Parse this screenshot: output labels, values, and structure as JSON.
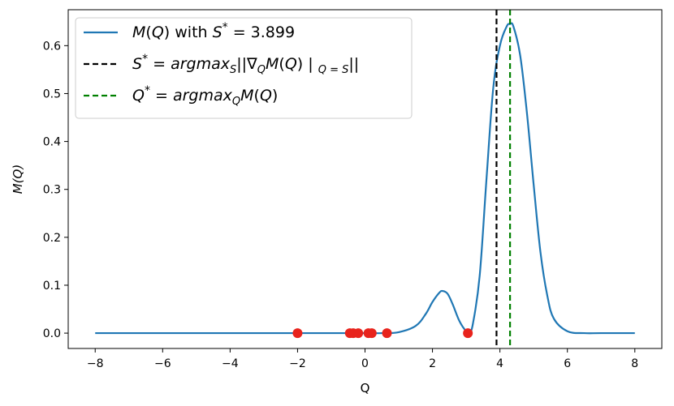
{
  "chart_data": {
    "type": "line",
    "xlabel": "Q",
    "ylabel": "M(Q)",
    "xlim": [
      -8.8,
      8.8
    ],
    "ylim": [
      -0.032,
      0.675
    ],
    "xticks": [
      -8,
      -6,
      -4,
      -2,
      0,
      2,
      4,
      6,
      8
    ],
    "xtick_labels": [
      "−8",
      "−6",
      "−4",
      "−2",
      "0",
      "2",
      "4",
      "6",
      "8"
    ],
    "yticks": [
      0.0,
      0.1,
      0.2,
      0.3,
      0.4,
      0.5,
      0.6
    ],
    "ytick_labels": [
      "0.0",
      "0.1",
      "0.2",
      "0.3",
      "0.4",
      "0.5",
      "0.6"
    ],
    "grid": false,
    "legend_position": "top-left",
    "series": [
      {
        "name": "M(Q) with S* = 3.899",
        "style": "solid",
        "color": "#1f77b4",
        "x": [
          -8,
          -6,
          -4,
          -2,
          -1,
          0,
          0.5,
          1.0,
          1.5,
          1.8,
          2.0,
          2.2,
          2.3,
          2.45,
          2.6,
          2.8,
          3.0,
          3.1,
          3.2,
          3.4,
          3.6,
          3.8,
          4.0,
          4.2,
          4.3,
          4.4,
          4.6,
          4.8,
          5.0,
          5.2,
          5.4,
          5.6,
          6.0,
          6.5,
          7,
          8
        ],
        "y": [
          0,
          0,
          0,
          0,
          0,
          0,
          0,
          0.002,
          0.015,
          0.04,
          0.065,
          0.084,
          0.088,
          0.082,
          0.06,
          0.025,
          0.004,
          0.003,
          0.02,
          0.12,
          0.32,
          0.51,
          0.6,
          0.64,
          0.645,
          0.64,
          0.58,
          0.46,
          0.31,
          0.17,
          0.08,
          0.03,
          0.004,
          0,
          0,
          0
        ]
      }
    ],
    "vlines": [
      {
        "name": "S* = argmax_S||∇_Q M(Q) | Q=S||",
        "x": 3.899,
        "style": "dashed",
        "color": "#000000"
      },
      {
        "name": "Q* = argmax_Q M(Q)",
        "x": 4.3,
        "style": "dashed",
        "color": "#008000"
      }
    ],
    "points": {
      "color": "#e8231c",
      "x": [
        -2.0,
        -0.45,
        -0.35,
        -0.2,
        0.1,
        0.2,
        0.65,
        3.05
      ],
      "y": [
        0,
        0,
        0,
        0,
        0,
        0,
        0,
        0
      ]
    }
  }
}
